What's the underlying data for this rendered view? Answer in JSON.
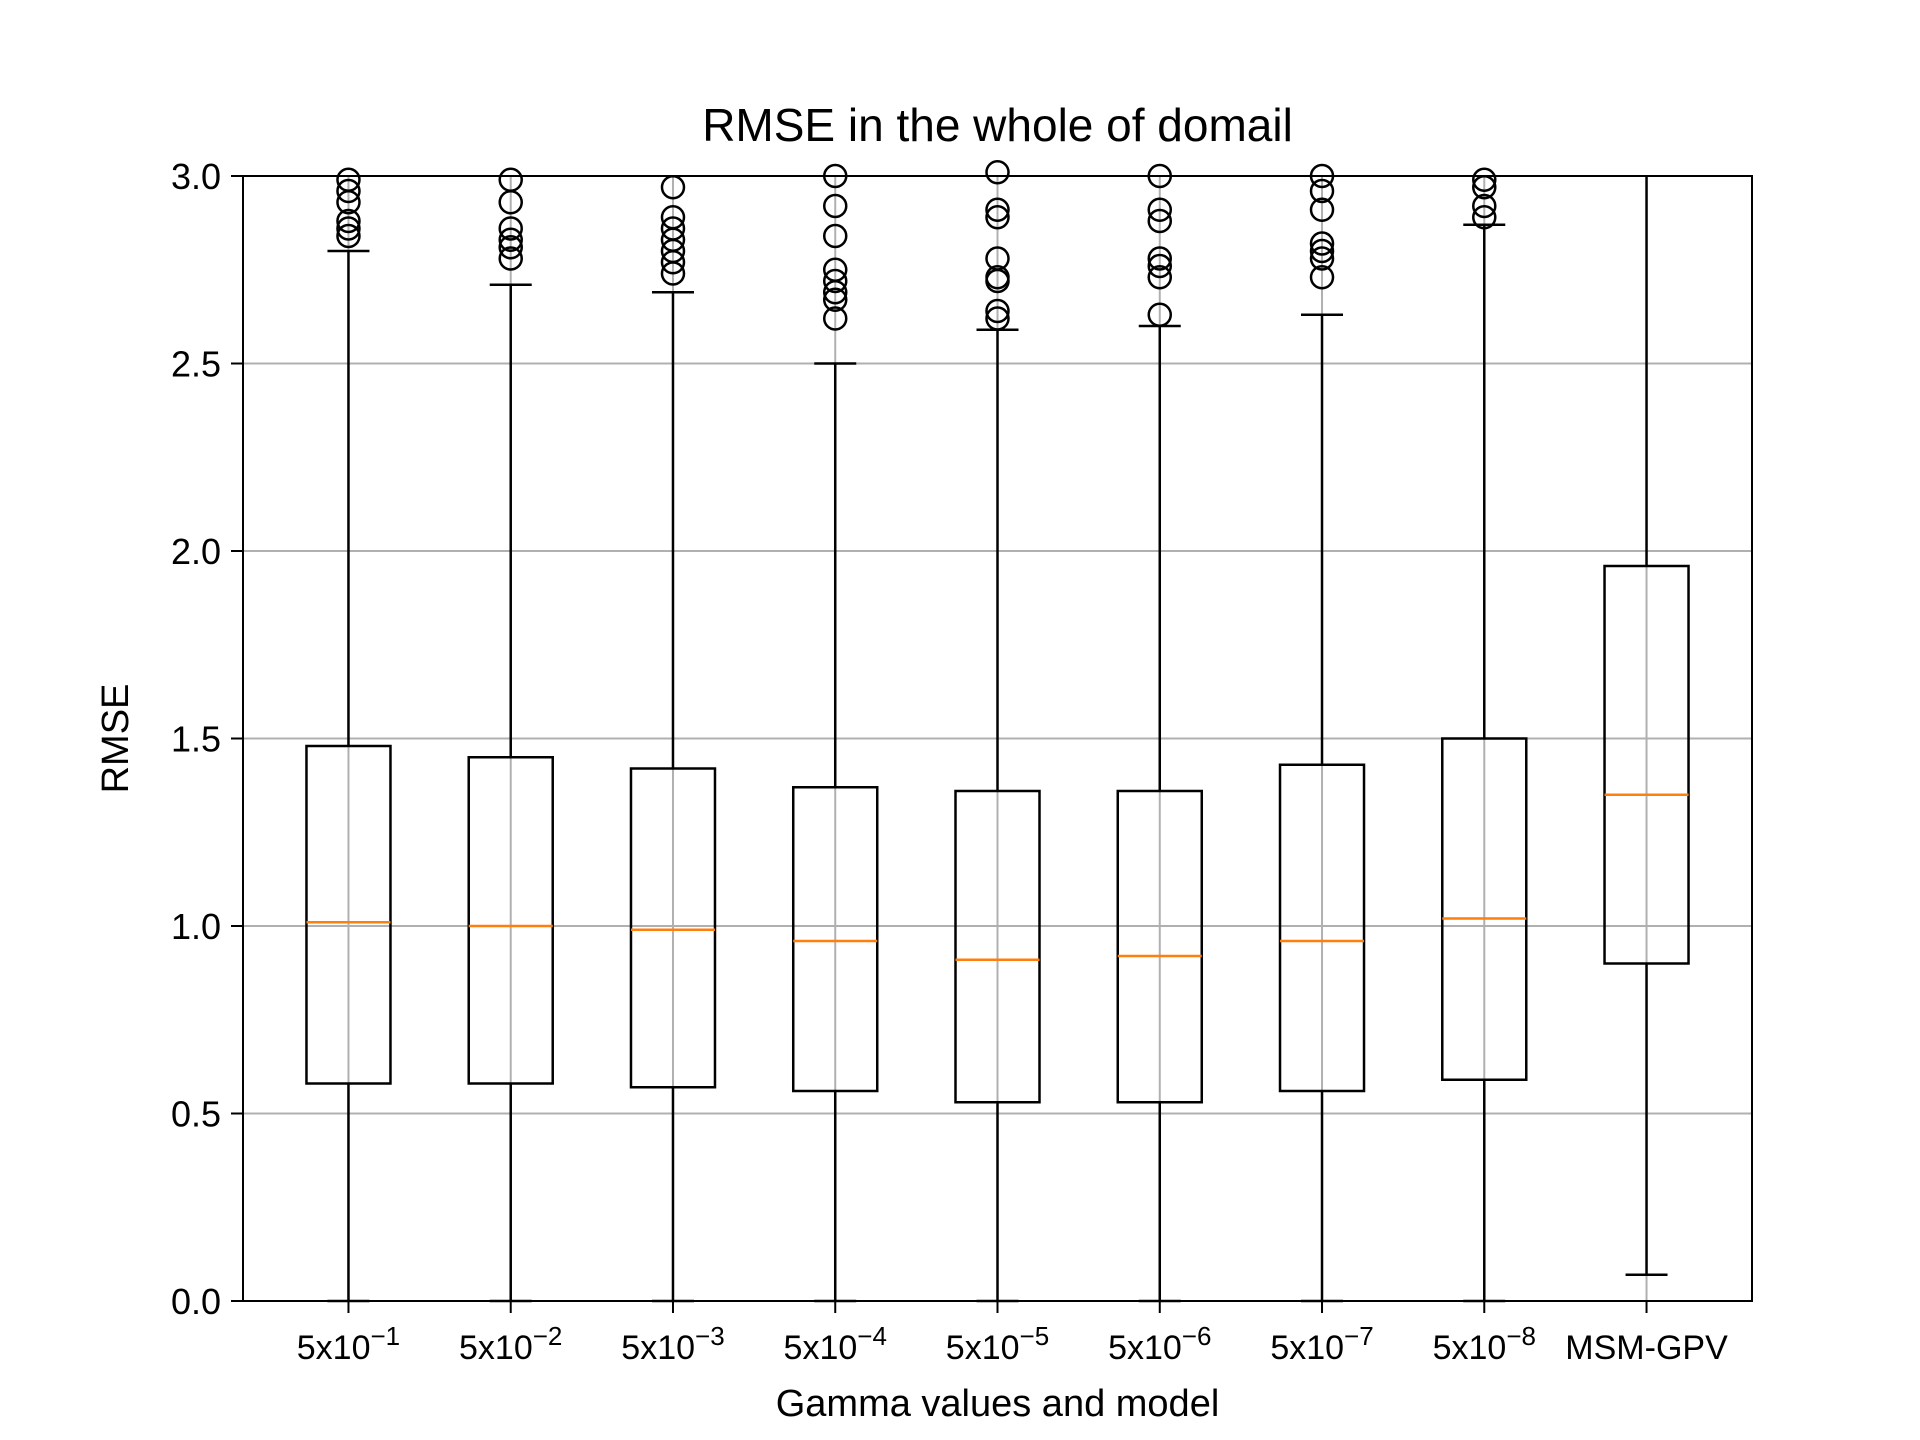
{
  "chart_data": {
    "type": "boxplot",
    "title": "RMSE in the whole of domail",
    "xlabel": "Gamma values and model",
    "ylabel": "RMSE",
    "ylim": [
      0.0,
      3.0
    ],
    "grid": true,
    "yticks": [
      "0.0",
      "0.5",
      "1.0",
      "1.5",
      "2.0",
      "2.5",
      "3.0"
    ],
    "categories": [
      {
        "base": "5x10",
        "exp": "−1"
      },
      {
        "base": "5x10",
        "exp": "−2"
      },
      {
        "base": "5x10",
        "exp": "−3"
      },
      {
        "base": "5x10",
        "exp": "−4"
      },
      {
        "base": "5x10",
        "exp": "−5"
      },
      {
        "base": "5x10",
        "exp": "−6"
      },
      {
        "base": "5x10",
        "exp": "−7"
      },
      {
        "base": "5x10",
        "exp": "−8"
      },
      {
        "base": "MSM-GPV",
        "exp": ""
      }
    ],
    "boxes": [
      {
        "whislo": 0.0,
        "q1": 0.58,
        "med": 1.01,
        "q3": 1.48,
        "whishi": 2.8,
        "fliers": [
          2.84,
          2.86,
          2.88,
          2.93,
          2.96,
          2.99
        ]
      },
      {
        "whislo": 0.0,
        "q1": 0.58,
        "med": 1.0,
        "q3": 1.45,
        "whishi": 2.71,
        "fliers": [
          2.78,
          2.81,
          2.83,
          2.86,
          2.93,
          2.99
        ]
      },
      {
        "whislo": 0.0,
        "q1": 0.57,
        "med": 0.99,
        "q3": 1.42,
        "whishi": 2.69,
        "fliers": [
          2.74,
          2.77,
          2.8,
          2.83,
          2.86,
          2.89,
          2.97
        ]
      },
      {
        "whislo": 0.0,
        "q1": 0.56,
        "med": 0.96,
        "q3": 1.37,
        "whishi": 2.5,
        "fliers": [
          2.62,
          2.67,
          2.69,
          2.72,
          2.75,
          2.84,
          2.92,
          3.0
        ]
      },
      {
        "whislo": 0.0,
        "q1": 0.53,
        "med": 0.91,
        "q3": 1.36,
        "whishi": 2.59,
        "fliers": [
          2.62,
          2.64,
          2.72,
          2.73,
          2.78,
          2.89,
          2.91,
          3.01
        ]
      },
      {
        "whislo": 0.0,
        "q1": 0.53,
        "med": 0.92,
        "q3": 1.36,
        "whishi": 2.6,
        "fliers": [
          2.63,
          2.73,
          2.76,
          2.78,
          2.88,
          2.91,
          3.0
        ]
      },
      {
        "whislo": 0.0,
        "q1": 0.56,
        "med": 0.96,
        "q3": 1.43,
        "whishi": 2.63,
        "fliers": [
          2.73,
          2.78,
          2.8,
          2.82,
          2.91,
          2.96,
          3.0
        ]
      },
      {
        "whislo": 0.0,
        "q1": 0.59,
        "med": 1.02,
        "q3": 1.5,
        "whishi": 2.87,
        "fliers": [
          2.89,
          2.92,
          2.97,
          2.99
        ]
      },
      {
        "whislo": 0.07,
        "q1": 0.9,
        "med": 1.35,
        "q3": 1.96,
        "whishi": 3.05,
        "fliers": []
      }
    ],
    "colors": {
      "box": "#000000",
      "median": "#ff7f0e",
      "grid": "#b0b0b0"
    }
  }
}
